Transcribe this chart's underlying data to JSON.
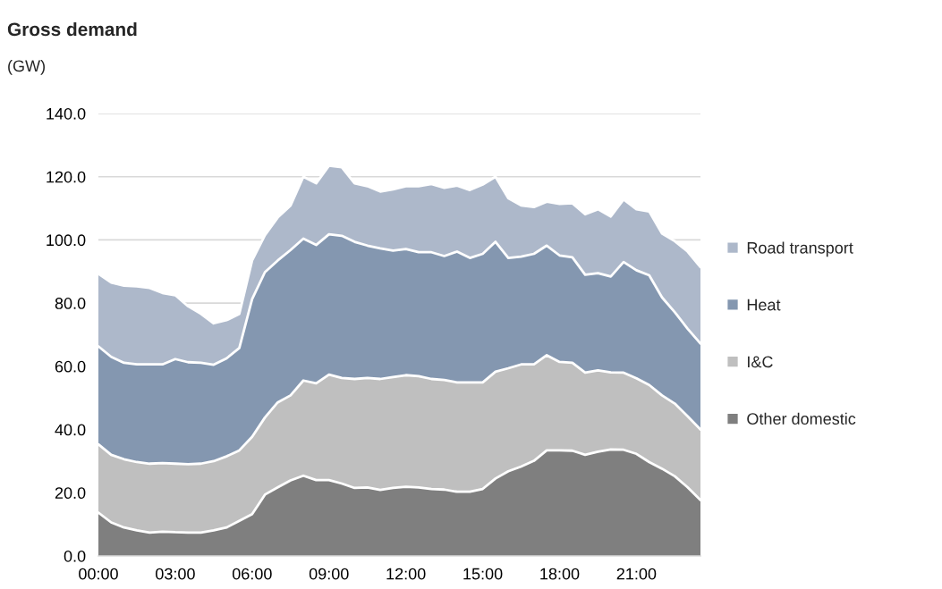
{
  "chart_data": {
    "type": "area",
    "stacked": true,
    "title": "Gross demand",
    "subtitle": "(GW)",
    "x": [
      0,
      0.5,
      1,
      1.5,
      2,
      2.5,
      3,
      3.5,
      4,
      4.5,
      5,
      5.5,
      6,
      6.5,
      7,
      7.5,
      8,
      8.5,
      9,
      9.5,
      10,
      10.5,
      11,
      11.5,
      12,
      12.5,
      13,
      13.5,
      14,
      14.5,
      15,
      15.5,
      16,
      16.5,
      17,
      17.5,
      18,
      18.5,
      19,
      19.5,
      20,
      20.5,
      21,
      21.5,
      22,
      22.5,
      23,
      23.5
    ],
    "series": [
      {
        "name": "Other domestic",
        "color": "#7f7f7f",
        "values": [
          13.7,
          10.6,
          9,
          8.1,
          7.4,
          7.7,
          7.5,
          7.4,
          7.4,
          8.1,
          9,
          11.1,
          13.2,
          19.4,
          21.7,
          23.9,
          25.4,
          24,
          24,
          22.9,
          21.5,
          21.7,
          20.9,
          21.5,
          21.9,
          21.7,
          21.2,
          21,
          20.3,
          20.3,
          21.2,
          24.5,
          26.8,
          28.3,
          30.1,
          33.4,
          33.4,
          33.3,
          32,
          33,
          33.7,
          33.6,
          32.3,
          29.7,
          27.6,
          25.2,
          21.7,
          17.7
        ]
      },
      {
        "name": "I&C",
        "color": "#bfbfbf",
        "values": [
          21.6,
          21.4,
          21.6,
          21.6,
          21.8,
          21.7,
          21.7,
          21.6,
          21.8,
          21.9,
          22.5,
          22.3,
          24.5,
          24.4,
          26.9,
          26.9,
          30.1,
          30.6,
          33.4,
          33.4,
          34.5,
          34.6,
          35.1,
          35.1,
          35.3,
          35.2,
          34.8,
          34.7,
          34.6,
          34.6,
          33.7,
          33.8,
          32.6,
          32.3,
          30.5,
          30.1,
          28,
          27.8,
          26,
          25.7,
          24.4,
          24.4,
          23.9,
          24.4,
          23.2,
          23,
          22.5,
          22.3
        ]
      },
      {
        "name": "Heat",
        "color": "#8497b0",
        "values": [
          31,
          31,
          30.5,
          30.9,
          31.4,
          31.2,
          33.1,
          32.3,
          31.9,
          30.5,
          31,
          32.4,
          43.6,
          46,
          44.9,
          46,
          44.9,
          43.8,
          44.4,
          45,
          43.4,
          41.9,
          41.3,
          40,
          39.9,
          39.2,
          40.1,
          39.2,
          41.4,
          39.4,
          40.7,
          41.1,
          34.9,
          34.1,
          35,
          34.7,
          33.7,
          33.4,
          31,
          30.8,
          30.3,
          35,
          34.2,
          34.7,
          31,
          28.9,
          27.7,
          27.2
        ]
      },
      {
        "name": "Road transport",
        "color": "#adb8ca",
        "values": [
          23,
          23.5,
          24.4,
          24.7,
          24.2,
          22.6,
          20.2,
          17.7,
          15.5,
          13.1,
          12.1,
          10.8,
          12.2,
          11.7,
          13.6,
          14.1,
          19.6,
          19.5,
          21.7,
          21.7,
          18.5,
          18.8,
          18,
          19.4,
          19.9,
          20.9,
          21.6,
          21.6,
          20.9,
          21.5,
          21.9,
          20.6,
          18.9,
          16.2,
          14.8,
          13.9,
          16.3,
          17.1,
          19.1,
          20.2,
          19,
          19.8,
          19.3,
          20.2,
          20.2,
          22.5,
          24.4,
          24.2
        ]
      }
    ],
    "xlim": [
      0,
      23.5
    ],
    "xticks": [
      {
        "value": 0,
        "label": "00:00"
      },
      {
        "value": 3,
        "label": "03:00"
      },
      {
        "value": 6,
        "label": "06:00"
      },
      {
        "value": 9,
        "label": "09:00"
      },
      {
        "value": 12,
        "label": "12:00"
      },
      {
        "value": 15,
        "label": "15:00"
      },
      {
        "value": 18,
        "label": "18:00"
      },
      {
        "value": 21,
        "label": "21:00"
      }
    ],
    "ylim": [
      0,
      140
    ],
    "yticks": [
      {
        "value": 0,
        "label": "0.0"
      },
      {
        "value": 20,
        "label": "20.0"
      },
      {
        "value": 40,
        "label": "40.0"
      },
      {
        "value": 60,
        "label": "60.0"
      },
      {
        "value": 80,
        "label": "80.0"
      },
      {
        "value": 100,
        "label": "100.0"
      },
      {
        "value": 120,
        "label": "120.0"
      },
      {
        "value": 140,
        "label": "140.0"
      }
    ],
    "grid": "y",
    "legend": "right"
  }
}
